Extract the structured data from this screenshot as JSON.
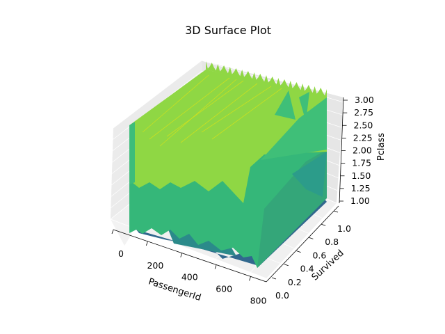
{
  "chart_data": {
    "type": "surface",
    "title": "3D Surface Plot",
    "xlabel": "PassengerId",
    "ylabel": "Survived",
    "zlabel": "Pclass",
    "xlim": [
      0,
      891
    ],
    "ylim": [
      0,
      1
    ],
    "zlim": [
      1,
      3
    ],
    "x_ticks": [
      "0",
      "200",
      "400",
      "600",
      "800"
    ],
    "y_ticks": [
      "0.0",
      "0.2",
      "0.4",
      "0.6",
      "0.8",
      "1.0"
    ],
    "z_ticks": [
      "1.00",
      "1.25",
      "1.50",
      "1.75",
      "2.00",
      "2.25",
      "2.50",
      "2.75",
      "3.00"
    ],
    "colormap": "viridis",
    "grid": true,
    "levels": [
      {
        "z": 3.0,
        "color": "#8fd744"
      },
      {
        "z": 2.0,
        "color": "#35b779"
      },
      {
        "z": 1.0,
        "color": "#31688e"
      }
    ]
  }
}
